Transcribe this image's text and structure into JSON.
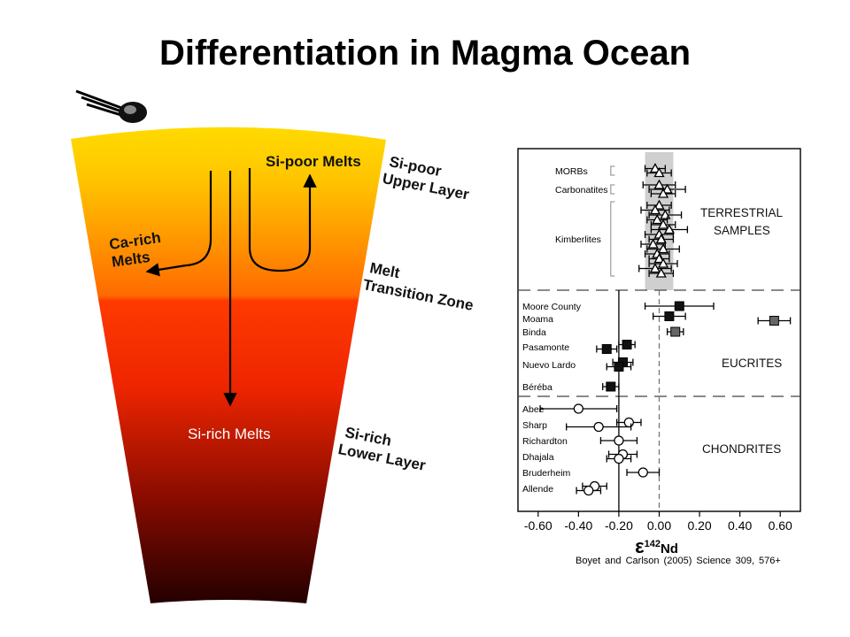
{
  "title": "Differentiation in Magma Ocean",
  "citation": "Boyet and Carlson (2005) Science 309, 576+",
  "diagram": {
    "labels": {
      "si_poor_melts": "Si-poor Melts",
      "ca_rich_line1": "Ca-rich",
      "ca_rich_line2": "Melts",
      "si_rich_melts": "Si-rich Melts",
      "upper_layer_line1": "Si-poor",
      "upper_layer_line2": "Upper Layer",
      "transition_line1": "Melt",
      "transition_line2": "Transition Zone",
      "lower_layer_line1": "Si-rich",
      "lower_layer_line2": "Lower Layer"
    },
    "colors": {
      "top": "#ffd800",
      "orange": "#ff7a00",
      "red": "#ff2a00",
      "dark": "#2a0000"
    }
  },
  "chart_data": {
    "type": "scatter",
    "xlabel": "ε142Nd",
    "xlabel_symbol": "ε",
    "xlabel_sup": "142",
    "xlabel_unit": "Nd",
    "xlim": [
      -0.7,
      0.7
    ],
    "ticks": [
      "-0.60",
      "-0.40",
      "-0.20",
      "0.00",
      "0.20",
      "0.40",
      "0.60"
    ],
    "tick_values": [
      -0.6,
      -0.4,
      -0.2,
      0.0,
      0.2,
      0.4,
      0.6
    ],
    "reference_lines": {
      "solid_x": -0.2,
      "dashed_x": 0.0
    },
    "groups": [
      {
        "name": "TERRESTRIAL",
        "name2": "SAMPLES",
        "marker": "triangle",
        "samples": [
          {
            "label": "MORBs",
            "points": [
              {
                "x": -0.02,
                "err": 0.05
              },
              {
                "x": 0.0,
                "err": 0.06
              }
            ]
          },
          {
            "label": "Carbonatites",
            "points": [
              {
                "x": 0.0,
                "err": 0.08
              },
              {
                "x": 0.04,
                "err": 0.09
              },
              {
                "x": 0.02,
                "err": 0.06
              }
            ]
          },
          {
            "label": "Kimberlites",
            "points": [
              {
                "x": 0.0,
                "err": 0.06
              },
              {
                "x": -0.02,
                "err": 0.07
              },
              {
                "x": 0.03,
                "err": 0.08
              },
              {
                "x": -0.01,
                "err": 0.05
              },
              {
                "x": 0.02,
                "err": 0.06
              },
              {
                "x": 0.05,
                "err": 0.09
              },
              {
                "x": 0.0,
                "err": 0.07
              },
              {
                "x": 0.01,
                "err": 0.06
              },
              {
                "x": -0.03,
                "err": 0.06
              },
              {
                "x": 0.02,
                "err": 0.08
              },
              {
                "x": -0.01,
                "err": 0.06
              },
              {
                "x": 0.0,
                "err": 0.05
              },
              {
                "x": 0.02,
                "err": 0.07
              },
              {
                "x": -0.02,
                "err": 0.08
              },
              {
                "x": 0.01,
                "err": 0.06
              }
            ]
          }
        ]
      },
      {
        "name": "EUCRITES",
        "marker": "square",
        "samples": [
          {
            "label": "Moore County",
            "points": [
              {
                "x": 0.1,
                "err": 0.17
              }
            ]
          },
          {
            "label": "Moama",
            "points": [
              {
                "x": 0.05,
                "err": 0.08
              },
              {
                "x": 0.57,
                "err": 0.08
              }
            ]
          },
          {
            "label": "Binda",
            "points": [
              {
                "x": 0.08,
                "err": 0.04
              }
            ]
          },
          {
            "label": "Pasamonte",
            "points": [
              {
                "x": -0.16,
                "err": 0.04
              },
              {
                "x": -0.26,
                "err": 0.05
              }
            ]
          },
          {
            "label": "Nuevo Lardo",
            "points": [
              {
                "x": -0.18,
                "err": 0.05
              },
              {
                "x": -0.2,
                "err": 0.06
              }
            ]
          },
          {
            "label": "Béréba",
            "points": [
              {
                "x": -0.24,
                "err": 0.04
              }
            ]
          }
        ]
      },
      {
        "name": "CHONDRITES",
        "marker": "circle",
        "samples": [
          {
            "label": "Abee",
            "points": [
              {
                "x": -0.4,
                "err": 0.19
              }
            ]
          },
          {
            "label": "Sharp",
            "points": [
              {
                "x": -0.15,
                "err": 0.06
              },
              {
                "x": -0.3,
                "err": 0.16
              }
            ]
          },
          {
            "label": "Richardton",
            "points": [
              {
                "x": -0.2,
                "err": 0.09
              }
            ]
          },
          {
            "label": "Dhajala",
            "points": [
              {
                "x": -0.18,
                "err": 0.07
              },
              {
                "x": -0.2,
                "err": 0.06
              }
            ]
          },
          {
            "label": "Bruderheim",
            "points": [
              {
                "x": -0.08,
                "err": 0.08
              }
            ]
          },
          {
            "label": "Allende",
            "points": [
              {
                "x": -0.32,
                "err": 0.06
              },
              {
                "x": -0.35,
                "err": 0.06
              }
            ]
          }
        ]
      }
    ]
  }
}
